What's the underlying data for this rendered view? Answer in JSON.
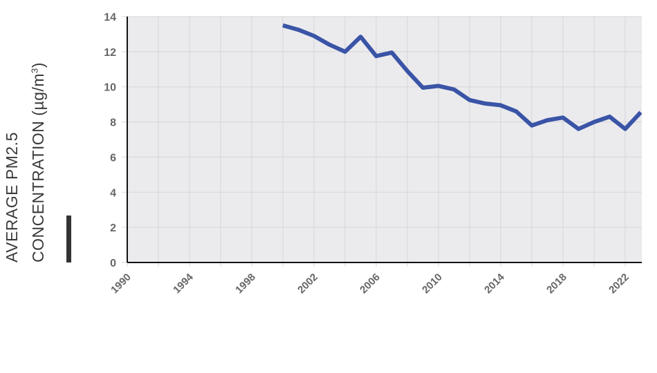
{
  "chart_data": {
    "type": "line",
    "title": "",
    "xlabel": "",
    "ylabel": "AVERAGE PM2.5 CONCENTRATION (µg/m³)",
    "ylabel_lines": [
      "AVERAGE PM2.5",
      "CONCENTRATION (µg/m",
      "3",
      ")"
    ],
    "xlim": [
      1990,
      2023
    ],
    "ylim": [
      0,
      14
    ],
    "x_ticks": [
      1990,
      1994,
      1998,
      2002,
      2006,
      2010,
      2014,
      2018,
      2022
    ],
    "x_tick_labels": [
      "1990",
      "1994",
      "1998",
      "2002",
      "2006",
      "2010",
      "2014",
      "2018",
      "2022"
    ],
    "x_grid_step": 2,
    "y_ticks": [
      0,
      2,
      4,
      6,
      8,
      10,
      12,
      14
    ],
    "y_tick_labels": [
      "0",
      "2",
      "4",
      "6",
      "8",
      "10",
      "12",
      "14"
    ],
    "grid": true,
    "legend": null,
    "series": [
      {
        "name": "Average PM2.5",
        "color": "#3a54a6",
        "x": [
          2000,
          2001,
          2002,
          2003,
          2004,
          2005,
          2006,
          2007,
          2008,
          2009,
          2010,
          2011,
          2012,
          2013,
          2014,
          2015,
          2016,
          2017,
          2018,
          2019,
          2020,
          2021,
          2022,
          2023
        ],
        "values": [
          13.5,
          13.25,
          12.9,
          12.4,
          12.0,
          12.85,
          11.75,
          11.95,
          10.9,
          9.95,
          10.05,
          9.85,
          9.25,
          9.05,
          8.95,
          8.6,
          7.8,
          8.1,
          8.25,
          7.6,
          8.0,
          8.3,
          7.6,
          8.55
        ]
      }
    ]
  },
  "colors": {
    "plot_background": "#ebebee",
    "grid": "#d6d6d9",
    "axis": "#111111",
    "tick_label": "#666666",
    "line": "#3a54a6",
    "ylabel": "#3a3a3a",
    "accent_bar": "#333333"
  }
}
